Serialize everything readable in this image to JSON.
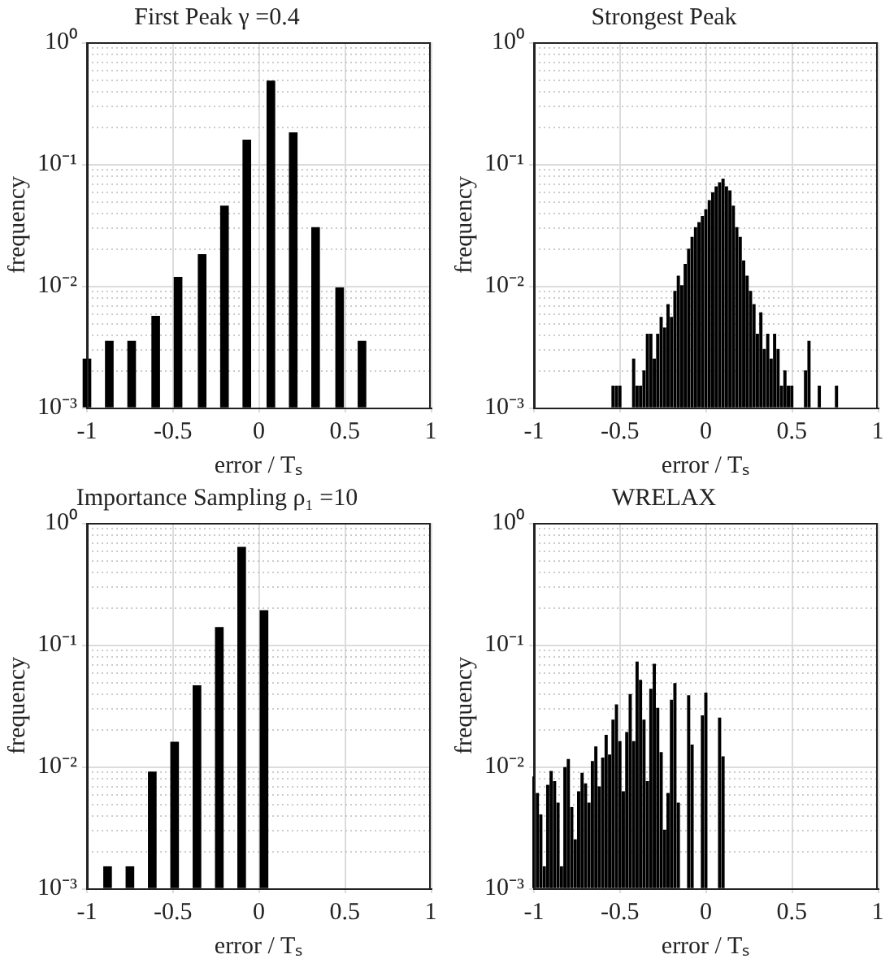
{
  "chart_data": [
    {
      "type": "bar",
      "title": "First Peak γ =0.4",
      "xlabel": "error / Tₛ",
      "ylabel": "frequency",
      "color": "#000000",
      "x": [
        -1,
        -0.87,
        -0.74,
        -0.6,
        -0.47,
        -0.33,
        -0.2,
        -0.07,
        0.07,
        0.2,
        0.33,
        0.47,
        0.6
      ],
      "values": [
        0.0025,
        0.0035,
        0.0035,
        0.0056,
        0.0117,
        0.018,
        0.045,
        0.157,
        0.48,
        0.18,
        0.03,
        0.0096,
        0.0035
      ],
      "xlim": [
        -1,
        1
      ],
      "xticks": [
        -1,
        -0.5,
        0,
        0.5,
        1
      ],
      "ylim": [
        0.001,
        1
      ],
      "yticks": [
        {
          "value": 0.001,
          "label": "10⁻³"
        },
        {
          "value": 0.01,
          "label": "10⁻²"
        },
        {
          "value": 0.1,
          "label": "10⁻¹"
        },
        {
          "value": 1,
          "label": "10⁰"
        }
      ],
      "log": "y",
      "grid": true
    },
    {
      "type": "bar",
      "title": "Strongest Peak",
      "xlabel": "error / Tₛ",
      "ylabel": "frequency",
      "color": "#000000",
      "x": [
        -0.54,
        -0.52,
        -0.5,
        -0.42,
        -0.4,
        -0.38,
        -0.36,
        -0.34,
        -0.32,
        -0.3,
        -0.28,
        -0.26,
        -0.24,
        -0.22,
        -0.2,
        -0.18,
        -0.16,
        -0.14,
        -0.12,
        -0.1,
        -0.08,
        -0.06,
        -0.04,
        -0.02,
        0,
        0.02,
        0.04,
        0.06,
        0.08,
        0.1,
        0.12,
        0.14,
        0.16,
        0.18,
        0.2,
        0.22,
        0.24,
        0.26,
        0.28,
        0.3,
        0.32,
        0.34,
        0.36,
        0.38,
        0.4,
        0.42,
        0.44,
        0.46,
        0.48,
        0.5,
        0.58,
        0.6,
        0.66,
        0.76
      ],
      "values": [
        0.0015,
        0.0015,
        0.0015,
        0.0025,
        0.0015,
        0.0015,
        0.002,
        0.004,
        0.004,
        0.0025,
        0.004,
        0.0055,
        0.0045,
        0.007,
        0.0055,
        0.009,
        0.012,
        0.01,
        0.015,
        0.02,
        0.025,
        0.03,
        0.033,
        0.037,
        0.042,
        0.05,
        0.058,
        0.065,
        0.07,
        0.075,
        0.065,
        0.06,
        0.045,
        0.03,
        0.025,
        0.016,
        0.012,
        0.009,
        0.007,
        0.004,
        0.006,
        0.003,
        0.004,
        0.0025,
        0.004,
        0.003,
        0.0015,
        0.002,
        0.0015,
        0.0015,
        0.002,
        0.0035,
        0.0015,
        0.0015
      ],
      "xlim": [
        -1,
        1
      ],
      "xticks": [
        -1,
        -0.5,
        0,
        0.5,
        1
      ],
      "ylim": [
        0.001,
        1
      ],
      "yticks": [
        {
          "value": 0.001,
          "label": "10⁻³"
        },
        {
          "value": 0.01,
          "label": "10⁻²"
        },
        {
          "value": 0.1,
          "label": "10⁻¹"
        },
        {
          "value": 1,
          "label": "10⁰"
        }
      ],
      "log": "y",
      "grid": true
    },
    {
      "type": "bar",
      "title": "Importance Sampling ρ₁ =10",
      "xlabel": "error / Tₛ",
      "ylabel": "frequency",
      "color": "#000000",
      "x": [
        -0.88,
        -0.75,
        -0.62,
        -0.49,
        -0.36,
        -0.23,
        -0.1,
        0.03
      ],
      "values": [
        0.0015,
        0.0015,
        0.009,
        0.0158,
        0.046,
        0.138,
        0.63,
        0.19
      ],
      "xlim": [
        -1,
        1
      ],
      "xticks": [
        -1,
        -0.5,
        0,
        0.5,
        1
      ],
      "ylim": [
        0.001,
        1
      ],
      "yticks": [
        {
          "value": 0.001,
          "label": "10⁻³"
        },
        {
          "value": 0.01,
          "label": "10⁻²"
        },
        {
          "value": 0.1,
          "label": "10⁻¹"
        },
        {
          "value": 1,
          "label": "10⁰"
        }
      ],
      "log": "y",
      "grid": true
    },
    {
      "type": "bar",
      "title": "WRELAX",
      "xlabel": "error / Tₛ",
      "ylabel": "frequency",
      "color": "#000000",
      "x": [
        -1,
        -0.98,
        -0.96,
        -0.94,
        -0.92,
        -0.9,
        -0.88,
        -0.86,
        -0.84,
        -0.82,
        -0.8,
        -0.78,
        -0.76,
        -0.74,
        -0.72,
        -0.7,
        -0.68,
        -0.66,
        -0.64,
        -0.62,
        -0.6,
        -0.58,
        -0.56,
        -0.54,
        -0.52,
        -0.5,
        -0.48,
        -0.46,
        -0.44,
        -0.42,
        -0.4,
        -0.38,
        -0.36,
        -0.34,
        -0.32,
        -0.3,
        -0.28,
        -0.26,
        -0.24,
        -0.22,
        -0.2,
        -0.18,
        -0.16,
        -0.1,
        -0.08,
        -0.02,
        0,
        0.08,
        0.1
      ],
      "values": [
        0.0082,
        0.006,
        0.004,
        0.0015,
        0.007,
        0.0091,
        0.0075,
        0.005,
        0.0015,
        0.0098,
        0.0114,
        0.0046,
        0.0025,
        0.0062,
        0.0088,
        0.0072,
        0.005,
        0.011,
        0.0145,
        0.0068,
        0.0117,
        0.018,
        0.0124,
        0.024,
        0.032,
        0.016,
        0.0062,
        0.019,
        0.039,
        0.016,
        0.072,
        0.051,
        0.024,
        0.0075,
        0.043,
        0.069,
        0.03,
        0.013,
        0.003,
        0.006,
        0.035,
        0.048,
        0.005,
        0.038,
        0.015,
        0.026,
        0.04,
        0.025,
        0.012
      ],
      "xlim": [
        -1,
        1
      ],
      "xticks": [
        -1,
        -0.5,
        0,
        0.5,
        1
      ],
      "ylim": [
        0.001,
        1
      ],
      "yticks": [
        {
          "value": 0.001,
          "label": "10⁻³"
        },
        {
          "value": 0.01,
          "label": "10⁻²"
        },
        {
          "value": 0.1,
          "label": "10⁻¹"
        },
        {
          "value": 1,
          "label": "10⁰"
        }
      ],
      "log": "y",
      "grid": true
    }
  ]
}
